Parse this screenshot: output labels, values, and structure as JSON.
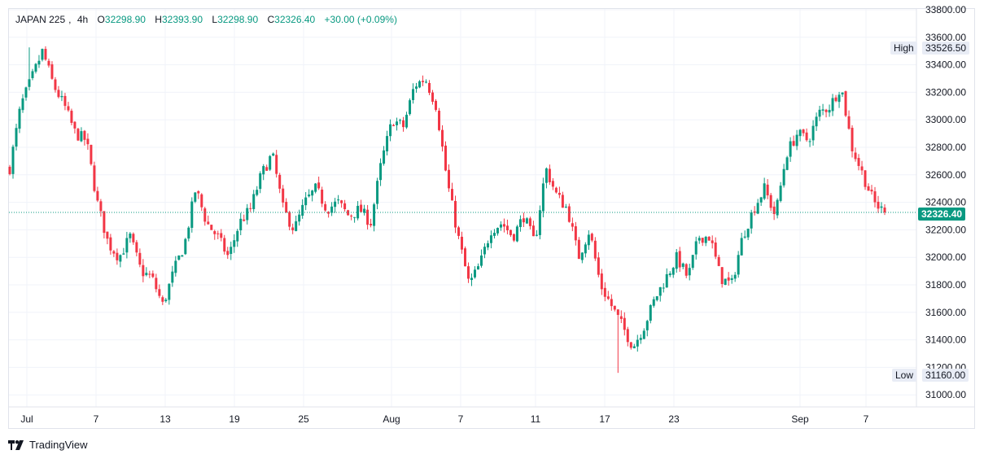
{
  "header": {
    "symbol": "JAPAN 225",
    "timeframe": "4h",
    "open_key": "O",
    "open": "32298.90",
    "high_key": "H",
    "high": "32393.90",
    "low_key": "L",
    "low": "32298.90",
    "close_key": "C",
    "close": "32326.40",
    "change": "+30.00 (+0.09%)"
  },
  "markers": {
    "high_label": "High",
    "high_value": "33526.50",
    "low_label": "Low",
    "low_value": "31160.00",
    "current_value": "32326.40"
  },
  "branding": {
    "name": "TradingView"
  },
  "colors": {
    "up": "#089981",
    "down": "#f23645",
    "grid": "#f0f3fa",
    "current_line": "#089981"
  },
  "chart_data": {
    "type": "candlestick",
    "y_ticks": [
      "33800.00",
      "33600.00",
      "33400.00",
      "33200.00",
      "33000.00",
      "32800.00",
      "32600.00",
      "32400.00",
      "32200.00",
      "32000.00",
      "31800.00",
      "31600.00",
      "31400.00",
      "31200.00",
      "31000.00"
    ],
    "ylim": [
      30900,
      33840
    ],
    "x_ticks": [
      "Jul",
      "7",
      "13",
      "19",
      "25",
      "Aug",
      "7",
      "11",
      "17",
      "23",
      "Sep",
      "7"
    ],
    "grid": true,
    "high": 33526.5,
    "low": 31160.0,
    "last": 32326.4,
    "approx_close_path": [
      32650,
      33100,
      33300,
      33500,
      33250,
      33100,
      32900,
      32850,
      32400,
      32100,
      32000,
      32150,
      31900,
      31850,
      31650,
      31900,
      32100,
      32500,
      32250,
      32150,
      32000,
      32250,
      32350,
      32600,
      32750,
      32350,
      32200,
      32400,
      32500,
      32350,
      32400,
      32300,
      32350,
      32250,
      32700,
      33000,
      32950,
      33250,
      33300,
      33100,
      32550,
      32150,
      31800,
      31950,
      32200,
      32250,
      32150,
      32300,
      32100,
      32650,
      32450,
      32350,
      32000,
      32200,
      31800,
      31650,
      31500,
      31350,
      31500,
      31700,
      31850,
      32000,
      31850,
      32150,
      32150,
      31850,
      31800,
      32150,
      32350,
      32500,
      32300,
      32750,
      32900,
      32850,
      33050,
      33100,
      33250,
      32800,
      32600,
      32400,
      32326.4
    ]
  }
}
